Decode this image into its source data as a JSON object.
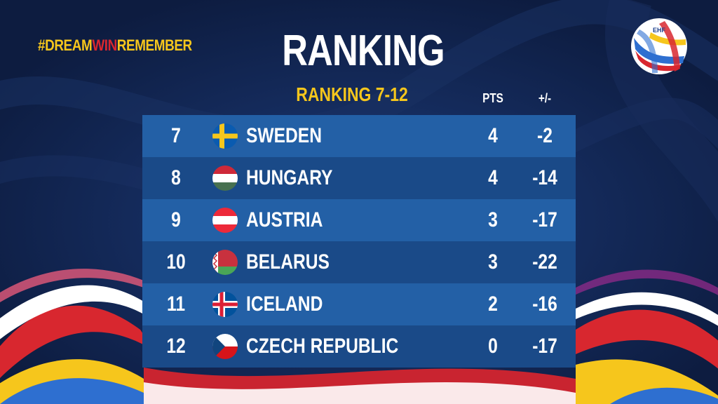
{
  "hashtag": {
    "part1": "#DREAM",
    "part2": "WIN",
    "part3": "REMEMBER"
  },
  "title": "RANKING",
  "subtitle": "RANKING 7-12",
  "columns": {
    "pts": "PTS",
    "diff": "+/-"
  },
  "logo": {
    "text": "EHF",
    "icon": "ehf-ball-logo"
  },
  "rows": [
    {
      "rank": "7",
      "team": "SWEDEN",
      "flag": "sweden-flag",
      "pts": "4",
      "diff": "-2"
    },
    {
      "rank": "8",
      "team": "HUNGARY",
      "flag": "hungary-flag",
      "pts": "4",
      "diff": "-14"
    },
    {
      "rank": "9",
      "team": "AUSTRIA",
      "flag": "austria-flag",
      "pts": "3",
      "diff": "-17"
    },
    {
      "rank": "10",
      "team": "BELARUS",
      "flag": "belarus-flag",
      "pts": "3",
      "diff": "-22"
    },
    {
      "rank": "11",
      "team": "ICELAND",
      "flag": "iceland-flag",
      "pts": "2",
      "diff": "-16"
    },
    {
      "rank": "12",
      "team": "CZECH REPUBLIC",
      "flag": "czech-flag",
      "pts": "0",
      "diff": "-17"
    }
  ],
  "colors": {
    "background": "#0f2148",
    "accent_yellow": "#f6c61c",
    "accent_red": "#d8272f",
    "row_light": "#2360a6",
    "row_dark": "#1a4a88"
  }
}
